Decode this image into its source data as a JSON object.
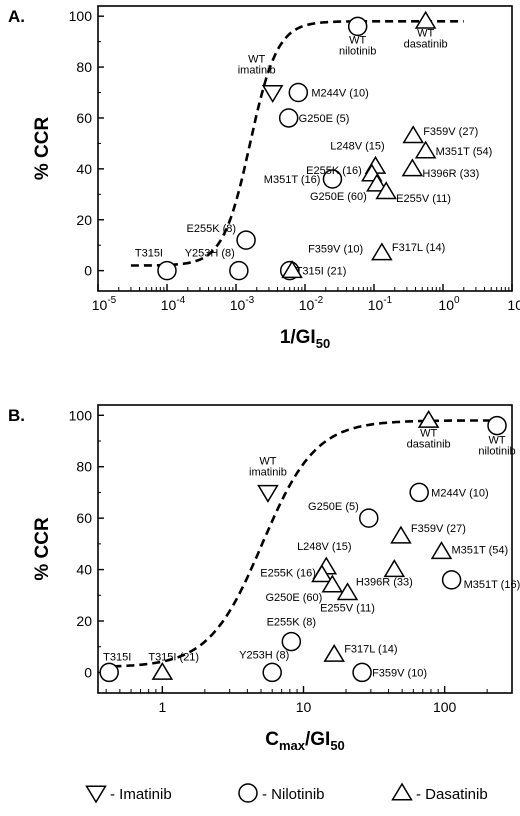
{
  "legend": [
    {
      "marker": "down-triangle",
      "label": "- Imatinib"
    },
    {
      "marker": "circle",
      "label": "- Nilotinib"
    },
    {
      "marker": "triangle",
      "label": "- Dasatinib"
    }
  ],
  "chart_data": [
    {
      "type": "scatter",
      "panel_label": "A.",
      "ylabel": "% CCR",
      "xlabel_main": "1/GI",
      "xlabel_sub": "50",
      "xlabel_pre": "",
      "xscale": "log",
      "xlim": [
        1e-05,
        10
      ],
      "ylim": [
        -8,
        104
      ],
      "x_ticks": [
        {
          "base": "10",
          "exp": "-5",
          "v": 1e-05
        },
        {
          "base": "10",
          "exp": "-4",
          "v": 0.0001
        },
        {
          "base": "10",
          "exp": "-3",
          "v": 0.001
        },
        {
          "base": "10",
          "exp": "-2",
          "v": 0.01
        },
        {
          "base": "10",
          "exp": "-1",
          "v": 0.1
        },
        {
          "base": "10",
          "exp": "0",
          "v": 1
        },
        {
          "base": "10",
          "exp": "1",
          "v": 10
        }
      ],
      "y_ticks": [
        0,
        20,
        40,
        60,
        80,
        100
      ],
      "fit_curve": {
        "style": "dashed",
        "xmin": 3e-05,
        "xmax": 2,
        "ymin": 2,
        "ymax": 98,
        "ec50": 0.0016,
        "hill": 2.2
      },
      "points": [
        {
          "label": "T315I",
          "series": "Nilotinib",
          "x": 0.0001,
          "y": 0
        },
        {
          "label": "Y253H (8)",
          "series": "Nilotinib",
          "x": 0.0011,
          "y": 0
        },
        {
          "label": "E255K (8)",
          "series": "Nilotinib",
          "x": 0.0014,
          "y": 12
        },
        {
          "label": "T315I (21)",
          "series": "Nilotinib",
          "x": 0.006,
          "y": 0
        },
        {
          "label": "F359V (10)",
          "series": "Dasatinib",
          "x": 0.0065,
          "y": 0
        },
        {
          "label": "M244V (10)",
          "series": "Nilotinib",
          "x": 0.008,
          "y": 70
        },
        {
          "label": "G250E (5)",
          "series": "Nilotinib",
          "x": 0.0058,
          "y": 60
        },
        {
          "label": "M351T (16)",
          "series": "Nilotinib",
          "x": 0.025,
          "y": 36
        },
        {
          "label": "WT imatinib",
          "series": "Imatinib",
          "x": 0.0034,
          "y": 70
        },
        {
          "label": "WT nilotinib",
          "series": "Nilotinib",
          "x": 0.058,
          "y": 96
        },
        {
          "label": "WT dasatinib",
          "series": "Dasatinib",
          "x": 0.56,
          "y": 98
        },
        {
          "label": "L248V (15)",
          "series": "Dasatinib",
          "x": 0.105,
          "y": 41
        },
        {
          "label": "E255K (16)",
          "series": "Dasatinib",
          "x": 0.093,
          "y": 38
        },
        {
          "label": "G250E (60)",
          "series": "Dasatinib",
          "x": 0.11,
          "y": 34
        },
        {
          "label": "E255V (11)",
          "series": "Dasatinib",
          "x": 0.15,
          "y": 31
        },
        {
          "label": "F359V (27)",
          "series": "Dasatinib",
          "x": 0.37,
          "y": 53
        },
        {
          "label": "M351T (54)",
          "series": "Dasatinib",
          "x": 0.56,
          "y": 47
        },
        {
          "label": "H396R (33)",
          "series": "Dasatinib",
          "x": 0.36,
          "y": 40
        },
        {
          "label": "F317L (14)",
          "series": "Dasatinib",
          "x": 0.13,
          "y": 7
        }
      ]
    },
    {
      "type": "scatter",
      "panel_label": "B.",
      "ylabel": "% CCR",
      "xlabel_pre": "C",
      "xlabel_presub": "max",
      "xlabel_main": "/GI",
      "xlabel_sub": "50",
      "xscale": "log",
      "xlim": [
        0.35,
        300
      ],
      "ylim": [
        -8,
        104
      ],
      "x_ticks": [
        {
          "base": "1",
          "exp": "",
          "v": 1
        },
        {
          "base": "10",
          "exp": "",
          "v": 10
        },
        {
          "base": "100",
          "exp": "",
          "v": 100
        }
      ],
      "y_ticks": [
        0,
        20,
        40,
        60,
        80,
        100
      ],
      "fit_curve": {
        "style": "dashed",
        "xmin": 0.45,
        "xmax": 250,
        "ymin": 2,
        "ymax": 98,
        "ec50": 5.1,
        "hill": 2.3
      },
      "points": [
        {
          "label": "T315I",
          "series": "Nilotinib",
          "x": 0.42,
          "y": 0
        },
        {
          "label": "T315I (21)",
          "series": "Dasatinib",
          "x": 1.0,
          "y": 0
        },
        {
          "label": "Y253H (8)",
          "series": "Nilotinib",
          "x": 6.0,
          "y": 0
        },
        {
          "label": "E255K (8)",
          "series": "Nilotinib",
          "x": 8.2,
          "y": 12
        },
        {
          "label": "F317L (14)",
          "series": "Dasatinib",
          "x": 16.5,
          "y": 7
        },
        {
          "label": "F359V (10)",
          "series": "Nilotinib",
          "x": 26,
          "y": 0
        },
        {
          "label": "WT imatinib",
          "series": "Imatinib",
          "x": 5.6,
          "y": 70
        },
        {
          "label": "G250E (5)",
          "series": "Nilotinib",
          "x": 29,
          "y": 60
        },
        {
          "label": "M244V (10)",
          "series": "Nilotinib",
          "x": 66,
          "y": 70
        },
        {
          "label": "L248V (15)",
          "series": "Dasatinib",
          "x": 14.5,
          "y": 41
        },
        {
          "label": "E255K (16)",
          "series": "Dasatinib",
          "x": 13.5,
          "y": 38
        },
        {
          "label": "G250E (60)",
          "series": "Dasatinib",
          "x": 16,
          "y": 34
        },
        {
          "label": "E255V (11)",
          "series": "Dasatinib",
          "x": 20.5,
          "y": 31
        },
        {
          "label": "F359V (27)",
          "series": "Dasatinib",
          "x": 49,
          "y": 53
        },
        {
          "label": "H396R (33)",
          "series": "Dasatinib",
          "x": 44,
          "y": 40
        },
        {
          "label": "M351T (54)",
          "series": "Dasatinib",
          "x": 95,
          "y": 47
        },
        {
          "label": "M351T (16)",
          "series": "Nilotinib",
          "x": 112,
          "y": 36
        },
        {
          "label": "WT dasatinib",
          "series": "Dasatinib",
          "x": 77,
          "y": 98
        },
        {
          "label": "WT nilotinib",
          "series": "Nilotinib",
          "x": 235,
          "y": 96
        }
      ]
    }
  ]
}
